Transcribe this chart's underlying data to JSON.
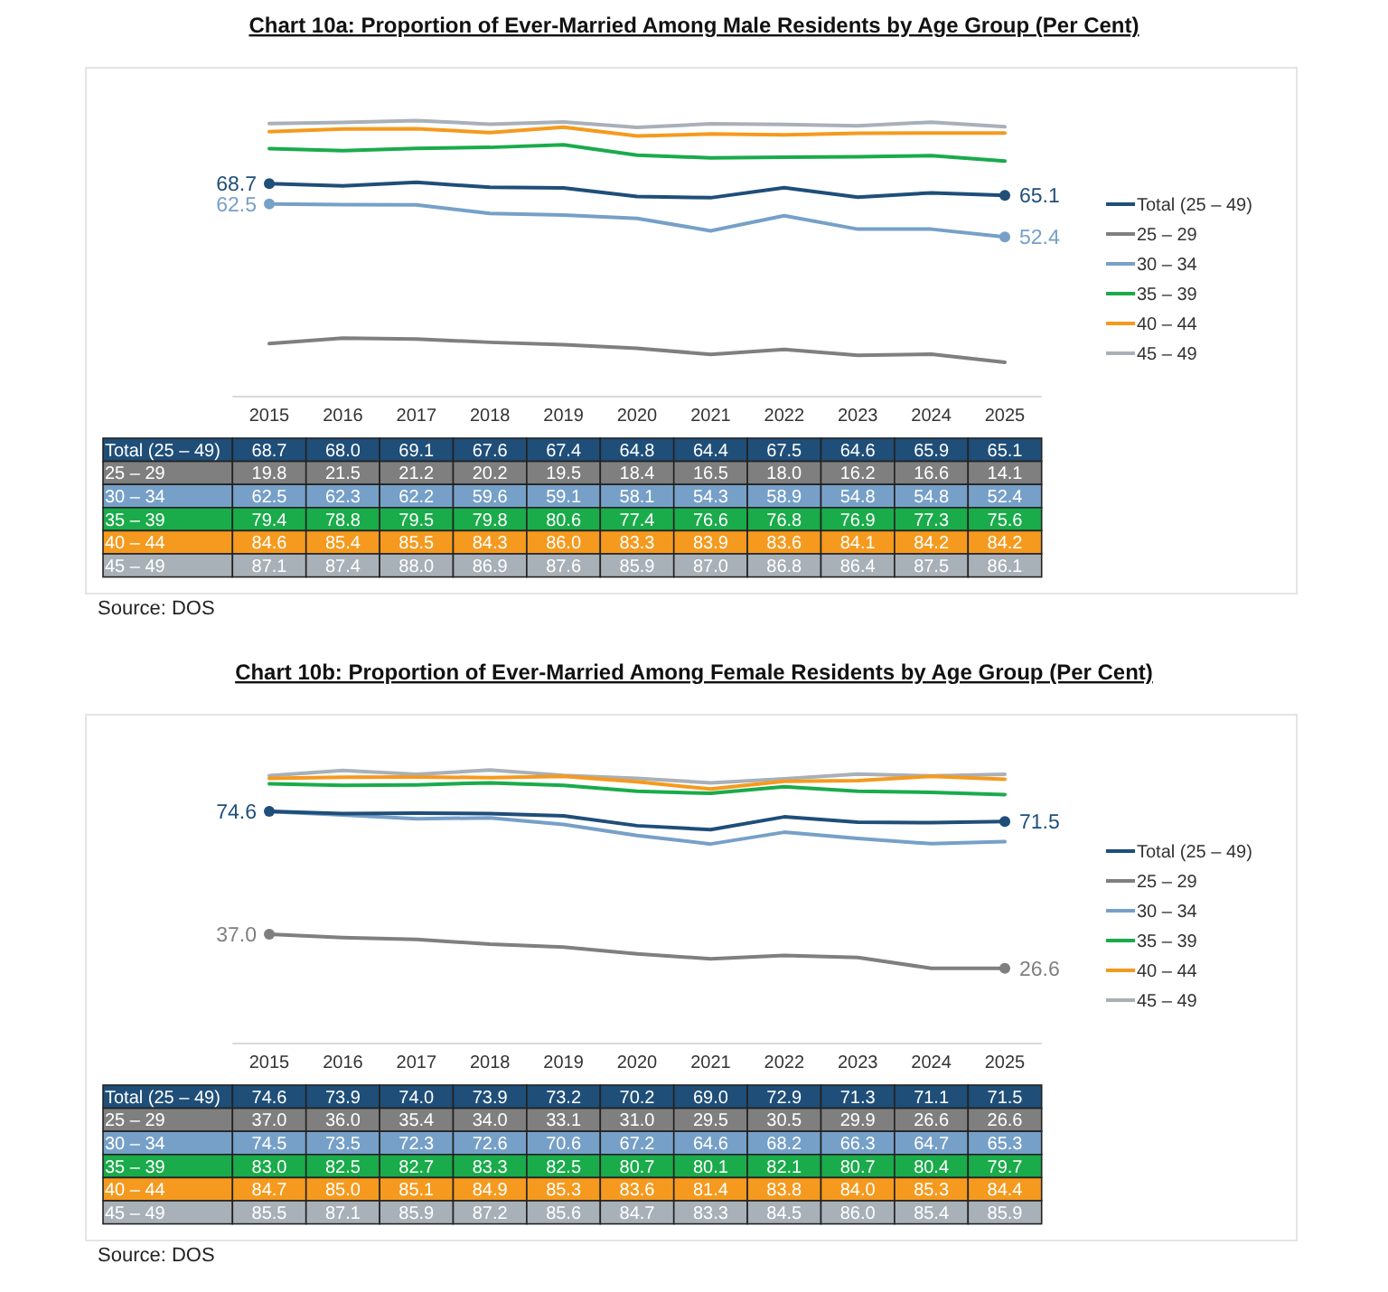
{
  "chart_data": [
    {
      "type": "line",
      "title": "Chart 10a: Proportion of Ever-Married Among Male Residents by Age Group (Per Cent)",
      "categories": [
        "2015",
        "2016",
        "2017",
        "2018",
        "2019",
        "2020",
        "2021",
        "2022",
        "2023",
        "2024",
        "2025"
      ],
      "tick_labels": "x",
      "legend": "right",
      "line_style": "solid",
      "series": [
        {
          "name": "Total (25 – 49)",
          "color": "#1f4e79",
          "values": [
            68.7,
            68.0,
            69.1,
            67.6,
            67.4,
            64.8,
            64.4,
            67.5,
            64.6,
            65.9,
            65.1
          ],
          "value_labels": [
            "68.7",
            "68.0",
            "69.1",
            "67.6",
            "67.4",
            "64.8",
            "64.4",
            "67.5",
            "64.6",
            "65.9",
            "65.1"
          ]
        },
        {
          "name": "25 – 29",
          "color": "#7f7f7f",
          "values": [
            19.8,
            21.5,
            21.2,
            20.2,
            19.5,
            18.4,
            16.5,
            18.0,
            16.2,
            16.6,
            14.1
          ],
          "value_labels": [
            "19.8",
            "21.5",
            "21.2",
            "20.2",
            "19.5",
            "18.4",
            "16.5",
            "18.0",
            "16.2",
            "16.6",
            "14.1"
          ]
        },
        {
          "name": "30 – 34",
          "color": "#76a0c8",
          "values": [
            62.5,
            62.3,
            62.2,
            59.6,
            59.1,
            58.1,
            54.3,
            58.9,
            54.8,
            54.8,
            52.4
          ],
          "value_labels": [
            "62.5",
            "62.3",
            "62.2",
            "59.6",
            "59.1",
            "58.1",
            "54.3",
            "58.9",
            "54.8",
            "54.8",
            "52.4"
          ]
        },
        {
          "name": "35 – 39",
          "color": "#1aab4b",
          "values": [
            79.4,
            78.8,
            79.5,
            79.8,
            80.6,
            77.4,
            76.6,
            76.8,
            76.9,
            77.3,
            75.6
          ],
          "value_labels": [
            "79.4",
            "78.8",
            "79.5",
            "79.8",
            "80.6",
            "77.4",
            "76.6",
            "76.8",
            "76.9",
            "77.3",
            "75.6"
          ]
        },
        {
          "name": "40 – 44",
          "color": "#f59a1e",
          "values": [
            84.6,
            85.4,
            85.5,
            84.3,
            86.0,
            83.3,
            83.9,
            83.6,
            84.1,
            84.2,
            84.2
          ],
          "value_labels": [
            "84.6",
            "85.4",
            "85.5",
            "84.3",
            "86.0",
            "83.3",
            "83.9",
            "83.6",
            "84.1",
            "84.2",
            "84.2"
          ]
        },
        {
          "name": "45 – 49",
          "color": "#a8b0b8",
          "values": [
            87.1,
            87.4,
            88.0,
            86.9,
            87.6,
            85.9,
            87.0,
            86.8,
            86.4,
            87.5,
            86.1
          ],
          "value_labels": [
            "87.1",
            "87.4",
            "88.0",
            "86.9",
            "87.6",
            "85.9",
            "87.0",
            "86.8",
            "86.4",
            "87.5",
            "86.1"
          ]
        }
      ],
      "annotations": [
        {
          "text": "68.7",
          "x": "2015",
          "y": 68.7
        },
        {
          "text": "62.5",
          "x": "2015",
          "y": 62.5
        },
        {
          "text": "65.1",
          "x": "2025",
          "y": 65.1
        },
        {
          "text": "52.4",
          "x": "2025",
          "y": 52.4
        },
        "Source: DOS"
      ]
    },
    {
      "type": "line",
      "title": "Chart 10b: Proportion of Ever-Married Among Female Residents by Age Group (Per Cent)",
      "categories": [
        "2015",
        "2016",
        "2017",
        "2018",
        "2019",
        "2020",
        "2021",
        "2022",
        "2023",
        "2024",
        "2025"
      ],
      "tick_labels": "x",
      "legend": "right",
      "line_style": "solid",
      "series": [
        {
          "name": "Total (25 – 49)",
          "color": "#1f4e79",
          "values": [
            74.6,
            73.9,
            74.0,
            73.9,
            73.2,
            70.2,
            69.0,
            72.9,
            71.3,
            71.1,
            71.5
          ],
          "value_labels": [
            "74.6",
            "73.9",
            "74.0",
            "73.9",
            "73.2",
            "70.2",
            "69.0",
            "72.9",
            "71.3",
            "71.1",
            "71.5"
          ]
        },
        {
          "name": "25 – 29",
          "color": "#7f7f7f",
          "values": [
            37.0,
            36.0,
            35.4,
            34.0,
            33.1,
            31.0,
            29.5,
            30.5,
            29.9,
            26.6,
            26.6
          ],
          "value_labels": [
            "37.0",
            "36.0",
            "35.4",
            "34.0",
            "33.1",
            "31.0",
            "29.5",
            "30.5",
            "29.9",
            "26.6",
            "26.6"
          ]
        },
        {
          "name": "30 – 34",
          "color": "#76a0c8",
          "values": [
            74.5,
            73.5,
            72.3,
            72.6,
            70.6,
            67.2,
            64.6,
            68.2,
            66.3,
            64.7,
            65.3
          ],
          "value_labels": [
            "74.5",
            "73.5",
            "72.3",
            "72.6",
            "70.6",
            "67.2",
            "64.6",
            "68.2",
            "66.3",
            "64.7",
            "65.3"
          ]
        },
        {
          "name": "35 – 39",
          "color": "#1aab4b",
          "values": [
            83.0,
            82.5,
            82.7,
            83.3,
            82.5,
            80.7,
            80.1,
            82.1,
            80.7,
            80.4,
            79.7
          ],
          "value_labels": [
            "83.0",
            "82.5",
            "82.7",
            "83.3",
            "82.5",
            "80.7",
            "80.1",
            "82.1",
            "80.7",
            "80.4",
            "79.7"
          ]
        },
        {
          "name": "40 – 44",
          "color": "#f59a1e",
          "values": [
            84.7,
            85.0,
            85.1,
            84.9,
            85.3,
            83.6,
            81.4,
            83.8,
            84.0,
            85.3,
            84.4
          ],
          "value_labels": [
            "84.7",
            "85.0",
            "85.1",
            "84.9",
            "85.3",
            "83.6",
            "81.4",
            "83.8",
            "84.0",
            "85.3",
            "84.4"
          ]
        },
        {
          "name": "45 – 49",
          "color": "#a8b0b8",
          "values": [
            85.5,
            87.1,
            85.9,
            87.2,
            85.6,
            84.7,
            83.3,
            84.5,
            86.0,
            85.4,
            85.9
          ],
          "value_labels": [
            "85.5",
            "87.1",
            "85.9",
            "87.2",
            "85.6",
            "84.7",
            "83.3",
            "84.5",
            "86.0",
            "85.4",
            "85.9"
          ]
        }
      ],
      "annotations": [
        {
          "text": "74.6",
          "x": "2015",
          "y": 74.6
        },
        {
          "text": "37.0",
          "x": "2015",
          "y": 37.0
        },
        {
          "text": "71.5",
          "x": "2025",
          "y": 71.5
        },
        {
          "text": "26.6",
          "x": "2025",
          "y": 26.6
        },
        "Source: DOS"
      ]
    }
  ]
}
